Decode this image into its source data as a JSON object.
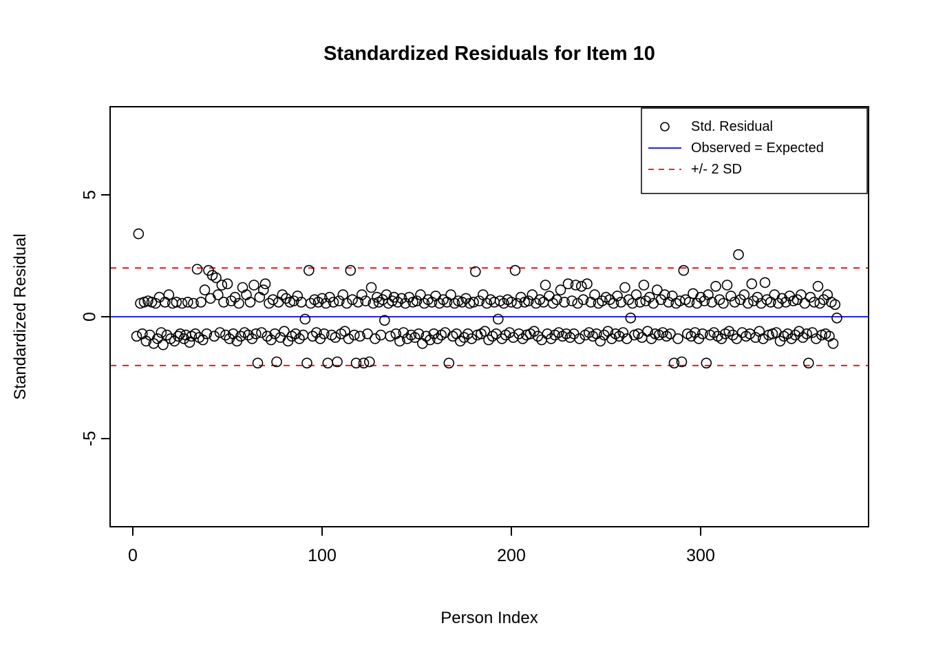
{
  "chart_data": {
    "type": "scatter",
    "title": "Standardized Residuals for Item 10",
    "xlabel": "Person Index",
    "ylabel": "Standardized Residual",
    "x_ticks": [
      0,
      100,
      200,
      300
    ],
    "y_ticks": [
      5,
      0,
      -5
    ],
    "xlim": [
      -12,
      388
    ],
    "ylim": [
      -8.6,
      8.6
    ],
    "grid": false,
    "colors": {
      "points": "#000000",
      "zero_line": "#0000FF",
      "sd_line": "#FF0000",
      "frame": "#000000"
    },
    "reference_lines": {
      "zero": 0,
      "upper_sd": 2,
      "lower_sd": -2
    },
    "legend": {
      "position": "top-right",
      "entries": [
        {
          "label": "Std. Residual",
          "symbol": "circle",
          "color": "#000000"
        },
        {
          "label": "Observed = Expected",
          "symbol": "line",
          "color": "#0000FF"
        },
        {
          "label": "+/- 2 SD",
          "symbol": "dashed-line",
          "color": "#FF0000"
        }
      ]
    },
    "points": {
      "x_start": 2,
      "x_step": 1,
      "y": [
        -0.8,
        3.4,
        0.55,
        -0.7,
        0.6,
        -1.0,
        0.65,
        -0.75,
        0.6,
        -1.1,
        0.55,
        -0.9,
        0.8,
        -0.65,
        -1.15,
        0.6,
        -0.75,
        0.9,
        -0.9,
        0.55,
        -1.0,
        0.6,
        -0.8,
        -0.7,
        0.55,
        -0.9,
        -0.75,
        0.6,
        -1.05,
        -0.8,
        0.55,
        -0.7,
        1.95,
        -0.85,
        0.6,
        -0.95,
        1.1,
        -0.7,
        1.9,
        0.75,
        1.7,
        -0.8,
        1.6,
        0.9,
        -0.65,
        1.3,
        0.6,
        -0.75,
        1.35,
        -0.9,
        0.65,
        -0.7,
        0.8,
        -1.0,
        0.55,
        -0.8,
        1.2,
        -0.65,
        0.9,
        -0.75,
        0.6,
        -0.9,
        1.3,
        -0.7,
        -1.9,
        0.8,
        -0.65,
        1.1,
        1.35,
        -0.8,
        0.55,
        -0.95,
        0.7,
        -0.7,
        -1.85,
        0.6,
        -0.85,
        0.9,
        -0.6,
        0.75,
        -1.0,
        0.6,
        -0.8,
        0.65,
        -0.7,
        0.85,
        -0.9,
        0.6,
        -0.75,
        -0.1,
        -1.9,
        1.9,
        0.55,
        -0.8,
        0.7,
        -0.65,
        0.6,
        -0.9,
        0.75,
        -0.7,
        0.55,
        -1.9,
        0.8,
        -0.75,
        0.6,
        -0.85,
        -1.85,
        0.65,
        -0.7,
        0.9,
        -0.6,
        0.55,
        -0.9,
        1.9,
        0.7,
        -0.75,
        -1.9,
        0.6,
        -0.8,
        0.9,
        -1.9,
        0.65,
        -0.7,
        -1.85,
        1.2,
        0.55,
        -0.9,
        0.8,
        0.6,
        -0.75,
        0.7,
        -0.15,
        0.9,
        0.55,
        -0.8,
        0.65,
        0.8,
        -0.7,
        0.6,
        -1.0,
        0.75,
        -0.65,
        0.55,
        -0.9,
        0.8,
        -0.75,
        0.6,
        -0.85,
        0.65,
        -0.7,
        0.9,
        -1.1,
        0.55,
        -0.8,
        0.7,
        -0.95,
        0.6,
        -0.7,
        0.85,
        -0.9,
        0.55,
        -0.75,
        0.7,
        -0.65,
        0.6,
        -1.9,
        0.9,
        -0.8,
        0.55,
        -0.7,
        0.65,
        -1.0,
        0.6,
        -0.85,
        0.75,
        -0.7,
        0.55,
        -0.9,
        0.6,
        1.85,
        -0.75,
        0.65,
        -0.7,
        0.9,
        -0.6,
        0.55,
        -0.95,
        0.7,
        -0.8,
        0.6,
        -0.7,
        -0.1,
        0.65,
        -0.9,
        0.55,
        -0.75,
        0.7,
        -0.65,
        0.6,
        -0.85,
        1.9,
        0.55,
        -0.7,
        0.8,
        -0.9,
        0.6,
        -0.75,
        0.65,
        -0.7,
        0.9,
        -0.6,
        0.55,
        -0.8,
        0.7,
        -0.95,
        0.6,
        1.3,
        -0.7,
        0.85,
        -0.9,
        0.55,
        -0.75,
        0.7,
        -0.65,
        1.1,
        -0.8,
        0.6,
        -0.7,
        1.35,
        -0.85,
        0.65,
        -0.7,
        1.3,
        0.55,
        -0.9,
        1.25,
        0.7,
        -0.75,
        1.35,
        -0.65,
        0.6,
        -0.8,
        0.9,
        -0.7,
        0.55,
        -1.0,
        0.65,
        -0.75,
        0.8,
        -0.6,
        0.7,
        -0.9,
        0.55,
        -0.7,
        0.85,
        -0.8,
        0.6,
        -0.65,
        1.2,
        -0.9,
        0.7,
        -0.05,
        0.55,
        -0.75,
        0.9,
        -0.7,
        0.6,
        -0.85,
        1.3,
        0.65,
        -0.6,
        0.8,
        -0.9,
        0.55,
        -0.7,
        1.1,
        -0.75,
        0.7,
        -0.65,
        0.9,
        -0.8,
        0.6,
        -0.7,
        0.85,
        -1.9,
        0.55,
        -0.9,
        0.65,
        -1.85,
        1.9,
        0.7,
        -0.7,
        0.6,
        -0.8,
        0.95,
        -0.65,
        0.55,
        -0.9,
        0.8,
        -0.7,
        0.65,
        -1.9,
        0.9,
        -0.75,
        0.6,
        -0.65,
        1.25,
        -0.8,
        0.7,
        -0.9,
        0.55,
        -0.7,
        1.3,
        -0.6,
        0.85,
        -0.75,
        0.6,
        -0.9,
        2.55,
        0.7,
        -0.65,
        0.9,
        -0.8,
        0.55,
        -0.7,
        1.35,
        0.65,
        -0.85,
        0.8,
        -0.6,
        0.55,
        -0.9,
        1.4,
        0.7,
        -0.75,
        0.6,
        -0.7,
        0.9,
        -0.65,
        0.55,
        -1.0,
        0.75,
        -0.8,
        0.6,
        -0.7,
        0.85,
        -0.9,
        0.65,
        -0.75,
        0.7,
        -0.6,
        0.9,
        -0.85,
        0.55,
        -0.7,
        -1.9,
        0.8,
        -0.65,
        0.6,
        -0.9,
        1.25,
        0.55,
        -0.75,
        0.7,
        -0.7,
        0.9,
        -0.8,
        0.6,
        -1.1,
        0.5,
        -0.05
      ]
    }
  }
}
